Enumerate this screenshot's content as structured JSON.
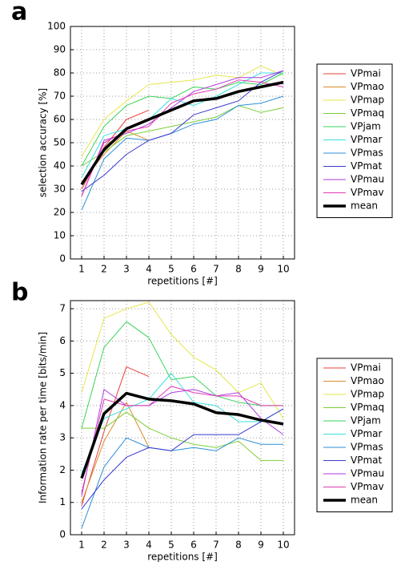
{
  "chart_data": [
    {
      "type": "line",
      "panel_label": "a",
      "xlabel": "repetitions  [#]",
      "ylabel": "selection accuracy  [%]",
      "x": [
        1,
        2,
        3,
        4,
        5,
        6,
        7,
        8,
        9,
        10
      ],
      "xlim": [
        0.5,
        10.5
      ],
      "xticks": [
        1,
        2,
        3,
        4,
        5,
        6,
        7,
        8,
        9,
        10
      ],
      "ylim": [
        0,
        100
      ],
      "yticks": [
        0,
        10,
        20,
        30,
        40,
        50,
        60,
        70,
        80,
        90,
        100
      ],
      "grid": true,
      "legend": "right",
      "series": [
        {
          "name": "VPmai",
          "color": "#e8403a",
          "values": [
            30,
            48,
            60,
            64,
            null,
            null,
            null,
            null,
            null,
            null
          ]
        },
        {
          "name": "VPmao",
          "color": "#d98c2b",
          "values": [
            33,
            45,
            55,
            51,
            null,
            null,
            null,
            null,
            null,
            null
          ]
        },
        {
          "name": "VPmap",
          "color": "#e6e64d",
          "values": [
            44,
            60,
            68,
            75,
            76,
            77,
            79,
            78,
            83,
            79
          ]
        },
        {
          "name": "VPmaq",
          "color": "#7ccf3a",
          "values": [
            40,
            46,
            53,
            55,
            57,
            59,
            61,
            66,
            63,
            65
          ]
        },
        {
          "name": "VPjam",
          "color": "#3ad35a",
          "values": [
            40,
            57,
            66,
            70,
            69,
            74,
            73,
            76,
            75,
            80
          ]
        },
        {
          "name": "VPmar",
          "color": "#3ae0e0",
          "values": [
            35,
            53,
            56,
            60,
            69,
            66,
            70,
            75,
            80,
            80
          ]
        },
        {
          "name": "VPmas",
          "color": "#2d8fd8",
          "values": [
            21,
            43,
            52,
            51,
            54,
            58,
            60,
            66,
            67,
            70
          ]
        },
        {
          "name": "VPmat",
          "color": "#3a3ad0",
          "values": [
            29,
            36,
            45,
            51,
            54,
            62,
            65,
            68,
            76,
            81
          ]
        },
        {
          "name": "VPmau",
          "color": "#b03ae0",
          "values": [
            27,
            51,
            54,
            58,
            65,
            72,
            75,
            78,
            78,
            81
          ]
        },
        {
          "name": "VPmav",
          "color": "#e03ab0",
          "values": [
            27,
            50,
            55,
            57,
            67,
            71,
            73,
            77,
            76,
            74
          ]
        },
        {
          "name": "mean",
          "color": "#000000",
          "values": [
            32,
            47,
            56,
            60,
            64,
            68,
            69,
            72,
            74,
            76
          ]
        }
      ]
    },
    {
      "type": "line",
      "panel_label": "b",
      "xlabel": "repetitions  [#]",
      "ylabel": "Information rate per time  [bits/min]",
      "x": [
        1,
        2,
        3,
        4,
        5,
        6,
        7,
        8,
        9,
        10
      ],
      "xlim": [
        0.5,
        10.5
      ],
      "xticks": [
        1,
        2,
        3,
        4,
        5,
        6,
        7,
        8,
        9,
        10
      ],
      "ylim": [
        0,
        7.25
      ],
      "yticks": [
        0,
        1,
        2,
        3,
        4,
        5,
        6,
        7
      ],
      "grid": true,
      "legend": "right",
      "series": [
        {
          "name": "VPmai",
          "color": "#e8403a",
          "values": [
            0.9,
            3.2,
            5.2,
            4.9,
            null,
            null,
            null,
            null,
            null,
            null
          ]
        },
        {
          "name": "VPmao",
          "color": "#d98c2b",
          "values": [
            1.0,
            2.9,
            4.1,
            2.7,
            null,
            null,
            null,
            null,
            null,
            null
          ]
        },
        {
          "name": "VPmap",
          "color": "#e6e64d",
          "values": [
            4.4,
            6.7,
            7.0,
            7.2,
            6.2,
            5.5,
            5.1,
            4.4,
            4.7,
            3.6
          ]
        },
        {
          "name": "VPmaq",
          "color": "#7ccf3a",
          "values": [
            3.3,
            3.3,
            3.8,
            3.3,
            3.0,
            2.8,
            2.7,
            2.9,
            2.3,
            2.3
          ]
        },
        {
          "name": "VPjam",
          "color": "#3ad35a",
          "values": [
            3.3,
            5.8,
            6.6,
            6.1,
            4.8,
            4.9,
            4.3,
            4.1,
            4.0,
            4.0
          ]
        },
        {
          "name": "VPmar",
          "color": "#3ae0e0",
          "values": [
            1.9,
            3.6,
            3.9,
            4.2,
            5.0,
            4.1,
            4.0,
            3.5,
            3.5,
            3.9
          ]
        },
        {
          "name": "VPmas",
          "color": "#2d8fd8",
          "values": [
            0.2,
            2.1,
            3.0,
            2.7,
            2.6,
            2.7,
            2.6,
            3.0,
            2.8,
            2.8
          ]
        },
        {
          "name": "VPmat",
          "color": "#3a3ad0",
          "values": [
            0.8,
            1.7,
            2.4,
            2.7,
            2.6,
            3.1,
            3.1,
            3.1,
            3.5,
            3.9
          ]
        },
        {
          "name": "VPmau",
          "color": "#b03ae0",
          "values": [
            1.2,
            4.5,
            4.0,
            4.0,
            4.4,
            4.5,
            4.3,
            4.4,
            3.6,
            3.1
          ]
        },
        {
          "name": "VPmav",
          "color": "#e03ab0",
          "values": [
            1.3,
            4.2,
            4.0,
            4.0,
            4.6,
            4.4,
            4.3,
            4.3,
            4.0,
            4.0
          ]
        },
        {
          "name": "mean",
          "color": "#000000",
          "values": [
            1.75,
            3.75,
            4.38,
            4.2,
            4.15,
            4.05,
            3.78,
            3.72,
            3.55,
            3.43
          ]
        }
      ]
    }
  ]
}
